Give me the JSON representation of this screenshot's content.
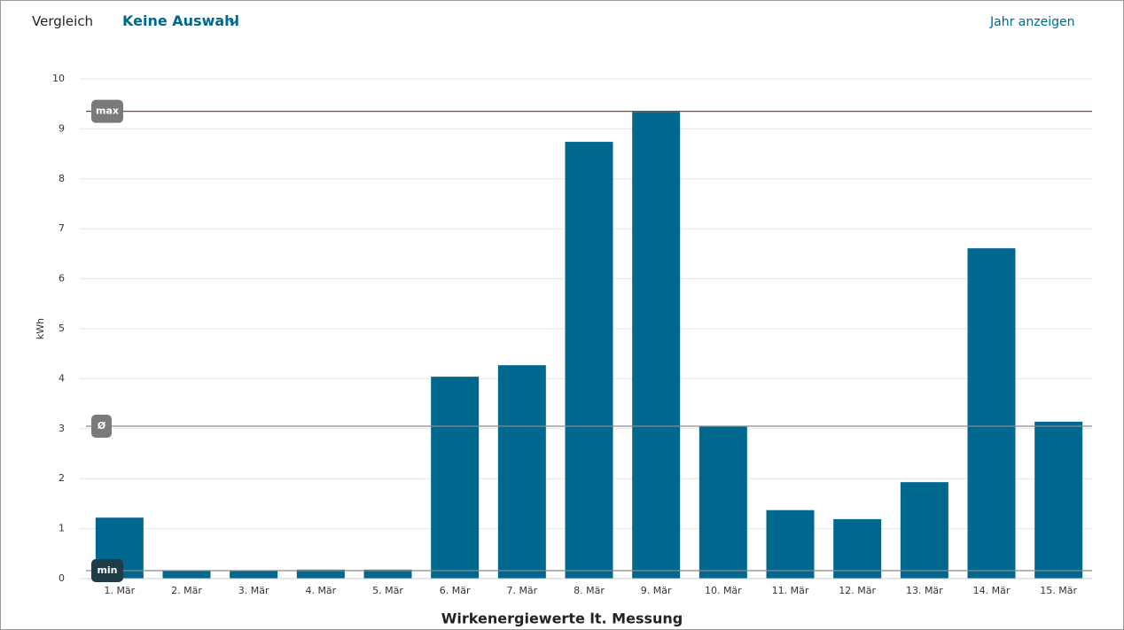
{
  "header": {
    "compare_label": "Vergleich",
    "selection": "Keine Auswahl",
    "year_link": "Jahr anzeigen"
  },
  "chart_data": {
    "type": "bar",
    "y_label": "kWh",
    "x_label": "Wirkenergiewerte lt. Messung",
    "categories": [
      "1. Mär",
      "2. Mär",
      "3. Mär",
      "4. Mär",
      "5. Mär",
      "6. Mär",
      "7. Mär",
      "8. Mär",
      "9. Mär",
      "10. Mär",
      "11. Mär",
      "12. Mär",
      "13. Mär",
      "14. Mär",
      "15. Mär"
    ],
    "values": [
      1.22,
      0.16,
      0.16,
      0.18,
      0.18,
      4.04,
      4.27,
      8.74,
      9.34,
      3.05,
      1.37,
      1.19,
      1.93,
      6.61,
      3.14
    ],
    "color": "#00678e",
    "ylim": [
      0,
      10
    ],
    "yticks": [
      0,
      1,
      2,
      3,
      4,
      5,
      6,
      7,
      8,
      9,
      10
    ],
    "grid": true,
    "reference_lines": [
      {
        "label": "max",
        "value": 9.35,
        "color": "#b03030",
        "badge_color": "#7a7a7a"
      },
      {
        "label": "Ø",
        "value": 3.05,
        "color": "#8a8a8a",
        "badge_color": "#7a7a7a"
      },
      {
        "label": "min",
        "value": 0.16,
        "color": "#8a8a8a",
        "badge_color": "#1f3c48"
      }
    ]
  }
}
